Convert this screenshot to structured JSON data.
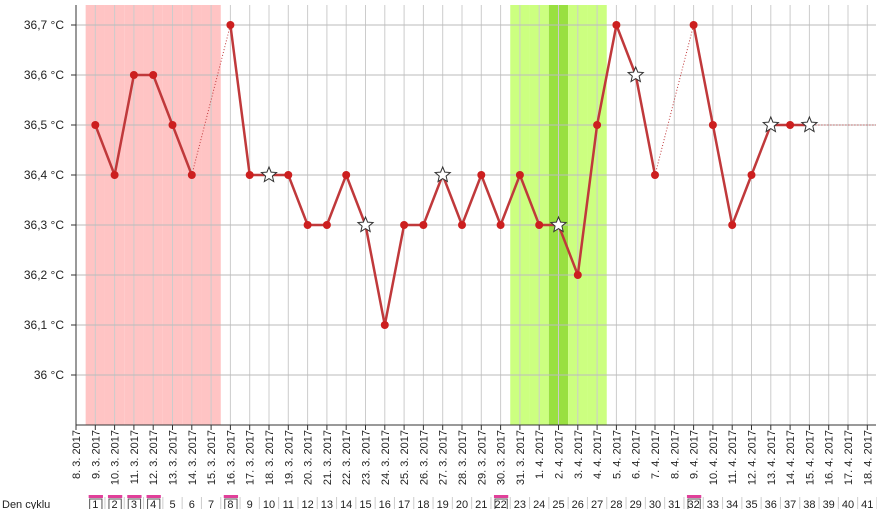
{
  "chart_data": {
    "type": "line",
    "categories": [
      "8. 3. 2017",
      "9. 3. 2017",
      "10. 3. 2017",
      "11. 3. 2017",
      "12. 3. 2017",
      "13. 3. 2017",
      "14. 3. 2017",
      "15. 3. 2017",
      "16. 3. 2017",
      "17. 3. 2017",
      "18. 3. 2017",
      "19. 3. 2017",
      "20. 3. 2017",
      "21. 3. 2017",
      "22. 3. 2017",
      "23. 3. 2017",
      "24. 3. 2017",
      "25. 3. 2017",
      "26. 3. 2017",
      "27. 3. 2017",
      "28. 3. 2017",
      "29. 3. 2017",
      "30. 3. 2017",
      "31. 3. 2017",
      "1. 4. 2017",
      "2. 4. 2017",
      "3. 4. 2017",
      "4. 4. 2017",
      "5. 4. 2017",
      "6. 4. 2017",
      "7. 4. 2017",
      "8. 4. 2017",
      "9. 4. 2017",
      "10. 4. 2017",
      "11. 4. 2017",
      "12. 4. 2017",
      "13. 4. 2017",
      "14. 4. 2017",
      "15. 4. 2017",
      "16. 4. 2017",
      "17. 4. 2017",
      "18. 4. 2017"
    ],
    "values": [
      null,
      36.5,
      36.4,
      36.6,
      36.6,
      36.5,
      36.4,
      null,
      36.7,
      36.4,
      36.4,
      36.4,
      36.3,
      36.3,
      36.4,
      36.3,
      36.1,
      36.3,
      36.3,
      36.4,
      36.3,
      36.4,
      36.3,
      36.4,
      36.3,
      36.3,
      36.2,
      36.5,
      36.7,
      36.6,
      36.4,
      null,
      36.7,
      36.5,
      36.3,
      36.4,
      36.5,
      36.5,
      36.5,
      null,
      null,
      null
    ],
    "markers": [
      "dot",
      "dot",
      "dot",
      "dot",
      "dot",
      "dot",
      "dot",
      "dot",
      "dot",
      "dot",
      "star",
      "dot",
      "dot",
      "dot",
      "dot",
      "star",
      "dot",
      "dot",
      "dot",
      "star",
      "dot",
      "dot",
      "dot",
      "dot",
      "dot",
      "star",
      "dot",
      "dot",
      "dot",
      "star",
      "dot",
      "dot",
      "dot",
      "dot",
      "dot",
      "dot",
      "star",
      "dot",
      "star",
      "dot",
      "dot",
      "dot"
    ],
    "shade": [
      null,
      "period",
      "period",
      "period",
      "period",
      "period",
      "period",
      "period",
      null,
      null,
      null,
      null,
      null,
      null,
      null,
      null,
      null,
      null,
      null,
      null,
      null,
      null,
      null,
      "fertile",
      "fertile",
      "ovulation",
      "fertile",
      "fertile",
      null,
      null,
      null,
      null,
      null,
      null,
      null,
      null,
      null,
      null,
      null,
      null,
      null,
      null
    ],
    "shade_colors": {
      "period": "#ffc4c4",
      "fertile": "#ccff80",
      "ovulation": "#99e040"
    },
    "color": "#c0393b",
    "cycle_label": "Den cyklu",
    "cycle_days": [
      null,
      1,
      2,
      3,
      4,
      5,
      6,
      7,
      8,
      9,
      10,
      11,
      12,
      13,
      14,
      15,
      16,
      17,
      18,
      19,
      20,
      21,
      22,
      23,
      24,
      25,
      26,
      27,
      28,
      29,
      30,
      31,
      32,
      33,
      34,
      35,
      36,
      37,
      38,
      39,
      40,
      41
    ],
    "cycle_day_marked": [
      false,
      true,
      true,
      true,
      true,
      false,
      false,
      false,
      true,
      false,
      false,
      false,
      false,
      false,
      false,
      false,
      false,
      false,
      false,
      false,
      false,
      false,
      true,
      false,
      false,
      false,
      false,
      false,
      false,
      false,
      false,
      false,
      true,
      false,
      false,
      false,
      false,
      false,
      false,
      false,
      false,
      false
    ],
    "ylim": [
      35.9,
      36.74
    ],
    "yticks": [
      {
        "value": 36,
        "label": "36 °C"
      },
      {
        "value": 36.1,
        "label": "36,1 °C"
      },
      {
        "value": 36.2,
        "label": "36,2 °C"
      },
      {
        "value": 36.3,
        "label": "36,3 °C"
      },
      {
        "value": 36.4,
        "label": "36,4 °C"
      },
      {
        "value": 36.5,
        "label": "36,5 °C"
      },
      {
        "value": 36.6,
        "label": "36,6 °C"
      },
      {
        "value": 36.7,
        "label": "36,7 °C"
      }
    ],
    "grid": true
  }
}
